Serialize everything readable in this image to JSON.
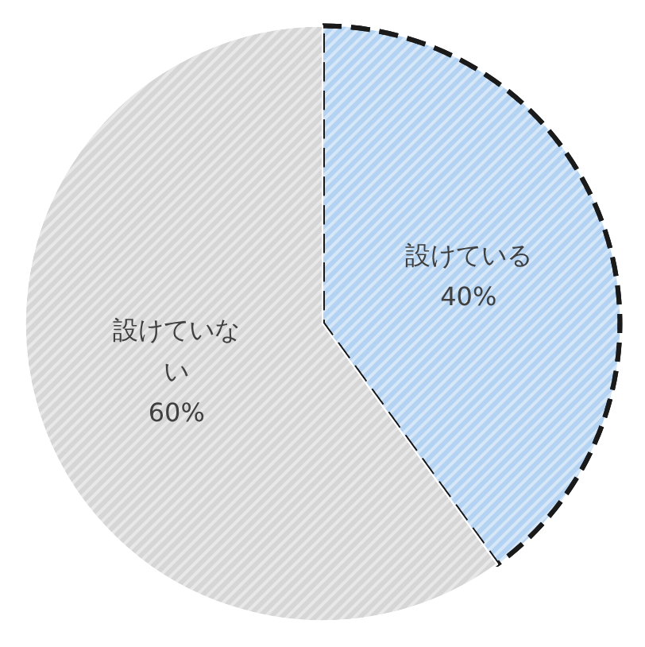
{
  "chart_data": {
    "type": "pie",
    "categories": [
      "設けている",
      "設けていない"
    ],
    "values": [
      40,
      60
    ],
    "colors": [
      "#b4d3f2",
      "#d6d6d6"
    ],
    "value_labels": [
      "40%",
      "60%"
    ]
  }
}
